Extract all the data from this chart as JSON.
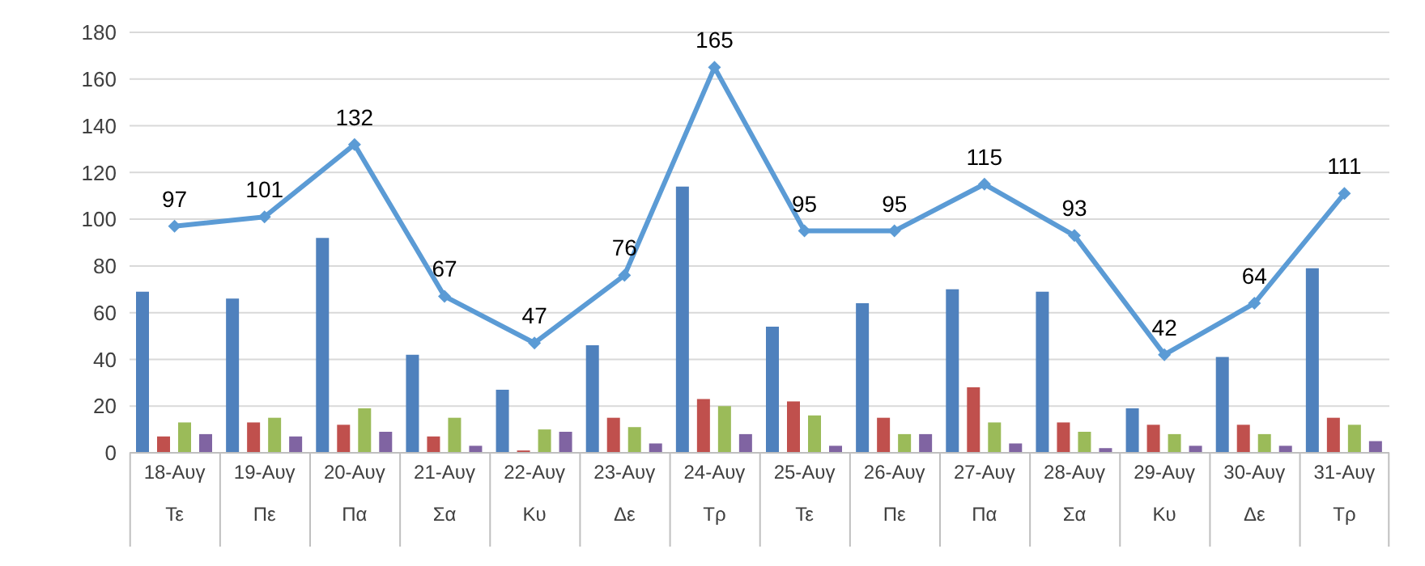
{
  "chart_data": {
    "type": "bar",
    "categories": [
      "18-Αυγ\nΤε",
      "19-Αυγ\nΠε",
      "20-Αυγ\nΠα",
      "21-Αυγ\nΣα",
      "22-Αυγ\nΚυ",
      "23-Αυγ\nΔε",
      "24-Αυγ\nΤρ",
      "25-Αυγ\nΤε",
      "26-Αυγ\nΠε",
      "27-Αυγ\nΠα",
      "28-Αυγ\nΣα",
      "29-Αυγ\nΚυ",
      "30-Αυγ\nΔε",
      "31-Αυγ\nΤρ"
    ],
    "series": [
      {
        "color": "#4f81bd",
        "values": [
          69,
          66,
          92,
          42,
          27,
          46,
          114,
          54,
          64,
          70,
          69,
          19,
          41,
          79
        ]
      },
      {
        "color": "#c0504d",
        "values": [
          7,
          13,
          12,
          7,
          1,
          15,
          23,
          22,
          15,
          28,
          13,
          12,
          12,
          15
        ]
      },
      {
        "color": "#9bbb59",
        "values": [
          13,
          15,
          19,
          15,
          10,
          11,
          20,
          16,
          8,
          13,
          9,
          8,
          8,
          12
        ]
      },
      {
        "color": "#8064a2",
        "values": [
          8,
          7,
          9,
          3,
          9,
          4,
          8,
          3,
          8,
          4,
          2,
          3,
          3,
          5
        ]
      },
      {
        "type": "line",
        "color": "#5b9bd5",
        "values": [
          97,
          101,
          132,
          67,
          47,
          76,
          165,
          95,
          95,
          115,
          93,
          42,
          64,
          111
        ],
        "value_labels": [
          "97",
          "101",
          "132",
          "67",
          "47",
          "76",
          "165",
          "95",
          "95",
          "115",
          "93",
          "42",
          "64",
          "111"
        ],
        "marker": "diamond"
      }
    ],
    "ylim": [
      0,
      180
    ],
    "yticks": [
      0,
      20,
      40,
      60,
      80,
      100,
      120,
      140,
      160,
      180
    ],
    "grid": "y",
    "legend": false
  }
}
